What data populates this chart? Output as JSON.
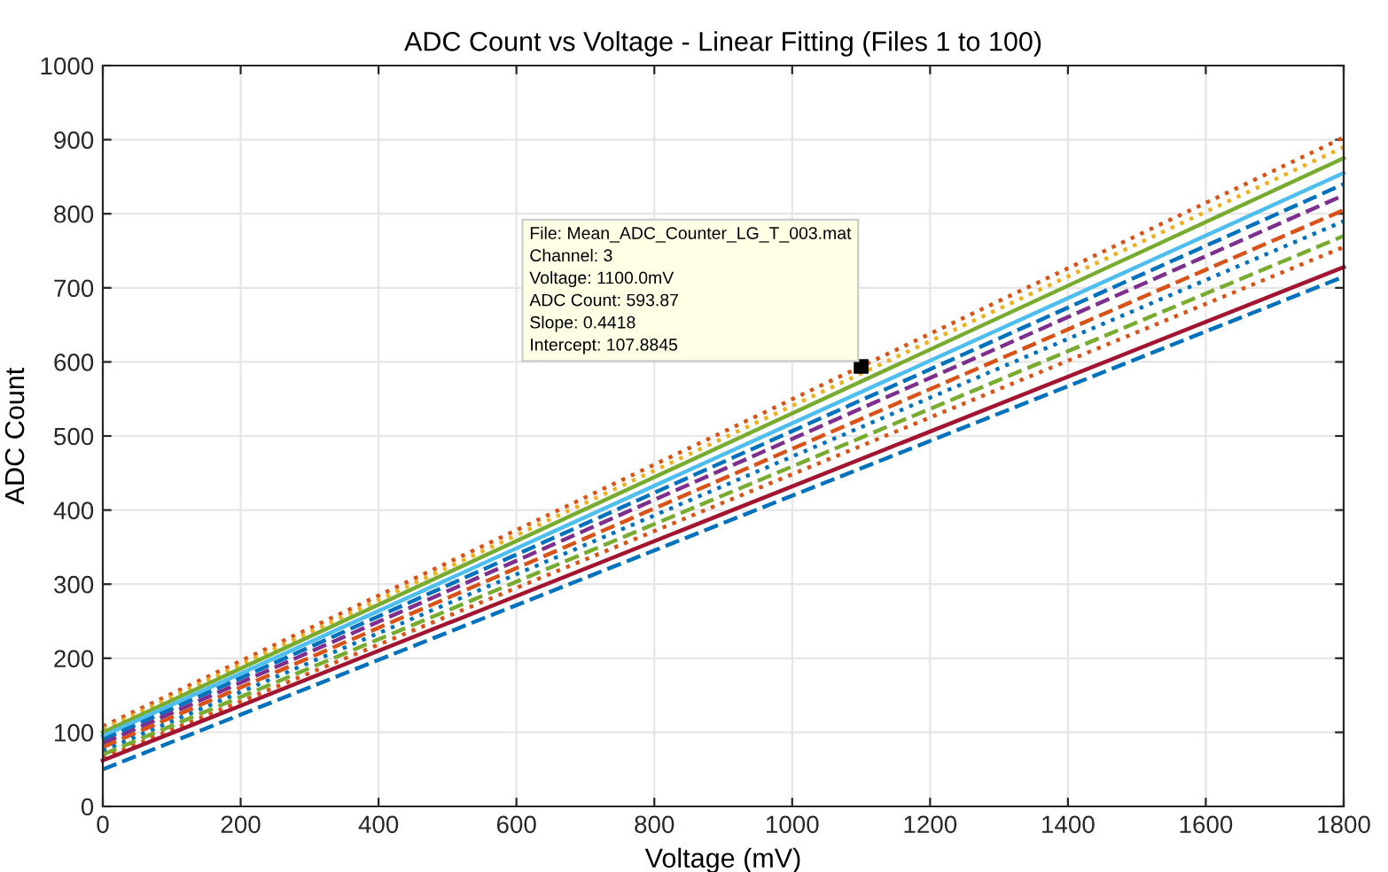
{
  "chart_data": {
    "type": "line",
    "title": "ADC Count vs Voltage - Linear Fitting (Files 1 to 100)",
    "xlabel": "Voltage (mV)",
    "ylabel": "ADC Count",
    "xlim": [
      0,
      1800
    ],
    "xticks": [
      0,
      200,
      400,
      600,
      800,
      1000,
      1200,
      1400,
      1600,
      1800
    ],
    "ylim": [
      0,
      1000
    ],
    "yticks": [
      0,
      100,
      200,
      300,
      400,
      500,
      600,
      700,
      800,
      900,
      1000
    ],
    "grid": true,
    "legend": false,
    "x": [
      0,
      1800
    ],
    "series": [
      {
        "color": "#d95319",
        "values": [
          108,
          903
        ],
        "line_style": "dotted"
      },
      {
        "color": "#edb120",
        "values": [
          104,
          890
        ],
        "line_style": "dotted"
      },
      {
        "color": "#77ac30",
        "values": [
          100,
          875
        ],
        "line_style": "solid"
      },
      {
        "color": "#4dbeee",
        "values": [
          95,
          855
        ],
        "line_style": "solid"
      },
      {
        "color": "#0072bd",
        "values": [
          90,
          840
        ],
        "line_style": "dashed"
      },
      {
        "color": "#7e2f8e",
        "values": [
          85,
          825
        ],
        "line_style": "dashed"
      },
      {
        "color": "#d95319",
        "values": [
          80,
          805
        ],
        "line_style": "dashed"
      },
      {
        "color": "#0072bd",
        "values": [
          75,
          790
        ],
        "line_style": "dotted"
      },
      {
        "color": "#77ac30",
        "values": [
          70,
          770
        ],
        "line_style": "dashed"
      },
      {
        "color": "#d95319",
        "values": [
          65,
          755
        ],
        "line_style": "dotted"
      },
      {
        "color": "#a2142f",
        "values": [
          62,
          728
        ],
        "line_style": "solid"
      },
      {
        "color": "#0072bd",
        "values": [
          50,
          715
        ],
        "line_style": "dashed"
      }
    ],
    "annotations": [
      {
        "text": "File: Mean_ADC_Counter_LG_T_003.mat\nChannel: 3\nVoltage: 1100.0mV\nADC Count: 593.87\nSlope: 0.4418\nIntercept: 107.8845",
        "x": 1100,
        "y": 593.87
      }
    ]
  }
}
